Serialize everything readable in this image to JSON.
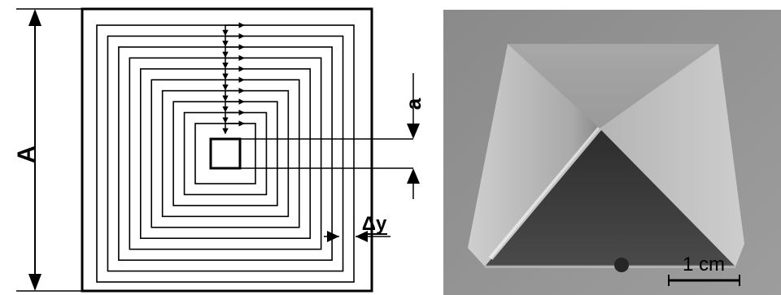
{
  "schematic": {
    "label_outer_side": "A",
    "label_inner_side": "a",
    "label_step": "Δy",
    "ring_count": 10
  },
  "photo": {
    "scale_bar_label": "1 cm"
  }
}
